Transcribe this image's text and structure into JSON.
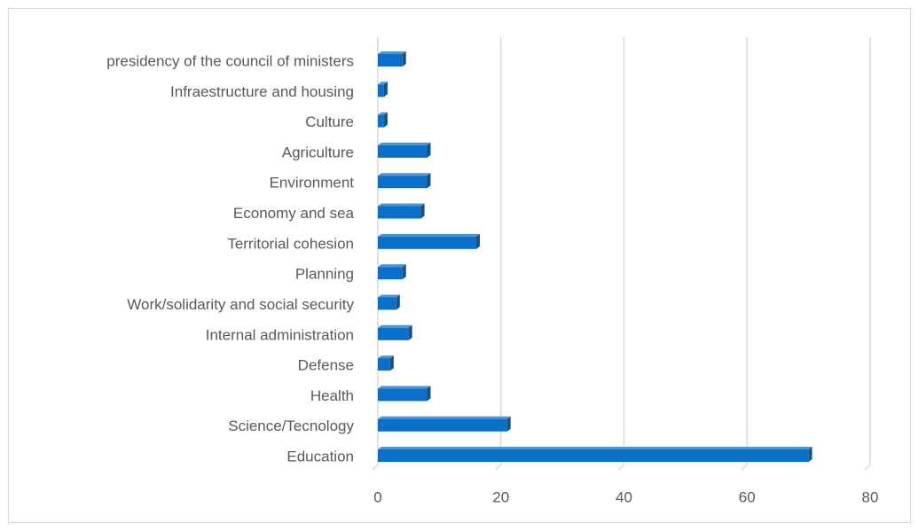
{
  "chart_data": {
    "type": "bar",
    "orientation": "horizontal",
    "categories": [
      "presidency of the council of ministers",
      "Infraestructure and housing",
      "Culture",
      "Agriculture",
      "Environment",
      "Economy and sea",
      "Territorial cohesion",
      "Planning",
      "Work/solidarity and social security",
      "Internal administration",
      "Defense",
      "Health",
      "Science/Tecnology",
      "Education"
    ],
    "values": [
      4,
      1,
      1,
      8,
      8,
      7,
      16,
      4,
      3,
      5,
      2,
      8,
      21,
      70
    ],
    "color": "#0a6fc9",
    "xlim": [
      0,
      80
    ],
    "xticks": [
      0,
      20,
      40,
      60,
      80
    ],
    "grid": true
  }
}
